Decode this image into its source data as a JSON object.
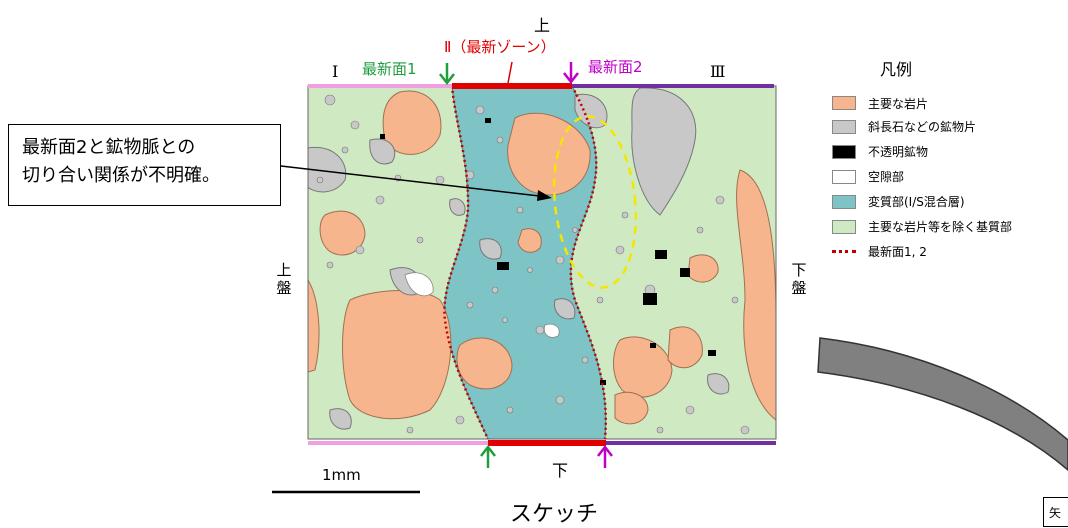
{
  "labels": {
    "top": "上",
    "bottom": "下",
    "zone_I": "Ⅰ",
    "zone_III": "Ⅲ",
    "zone_II": "Ⅱ（最新ゾーン）",
    "surface1": "最新面1",
    "surface2": "最新面2",
    "left_side": [
      "上",
      "盤"
    ],
    "right_side": [
      "下",
      "盤"
    ]
  },
  "callout": {
    "line1": "最新面2と鉱物脈との",
    "line2": "切り合い関係が不明確。"
  },
  "legend": {
    "title": "凡例",
    "items": [
      {
        "label": "主要な岩片",
        "color": "#f7b58e",
        "kind": "fill"
      },
      {
        "label": "斜長石などの鉱物片",
        "color": "#c8c8c8",
        "kind": "fill"
      },
      {
        "label": "不透明鉱物",
        "color": "#000000",
        "kind": "fill"
      },
      {
        "label": "空隙部",
        "color": "#ffffff",
        "kind": "fill"
      },
      {
        "label": "変質部(I/S混合層)",
        "color": "#7ec3c5",
        "kind": "fill"
      },
      {
        "label": "主要な岩片等を除く基質部",
        "color": "#cfeac3",
        "kind": "fill"
      },
      {
        "label": "最新面1, 2",
        "color": "#c00000",
        "kind": "dotted"
      }
    ]
  },
  "scale_label": "1mm",
  "caption": "スケッチ",
  "corner_text": "矢",
  "colors": {
    "rock": "#f7b58e",
    "mineral": "#c8c8c8",
    "alteration": "#7ec3c5",
    "matrix": "#cfeac3",
    "bar_pink": "#f0a0e0",
    "bar_red": "#e00000",
    "bar_purple": "#7030a0",
    "arrow_green": "#1e9e3c",
    "arrow_magenta": "#c000c8",
    "surface_dotted": "#c00000",
    "yellow_dash": "#f5e600"
  }
}
